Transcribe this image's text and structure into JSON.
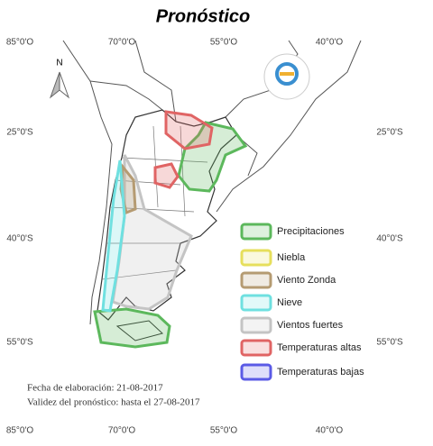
{
  "title": "Pronóstico",
  "longitude_labels_top": [
    "85°0'O",
    "70°0'O",
    "55°0'O",
    "40°0'O"
  ],
  "longitude_labels_bottom": [
    "85°0'O",
    "70°0'O",
    "55°0'O",
    "40°0'O"
  ],
  "latitude_labels_left": [
    "25°0'S",
    "40°0'S",
    "55°0'S"
  ],
  "latitude_labels_right": [
    "25°0'S",
    "40°0'S",
    "55°0'S"
  ],
  "north_label": "N",
  "legend": [
    {
      "label": "Precipitaciones",
      "color": "#5cb85c"
    },
    {
      "label": "Niebla",
      "color": "#e6df5c"
    },
    {
      "label": "Viento Zonda",
      "color": "#b59b72"
    },
    {
      "label": "Nieve",
      "color": "#6fe0e0"
    },
    {
      "label": "Vientos fuertes",
      "color": "#c4c4c4"
    },
    {
      "label": "Temperaturas altas",
      "color": "#e06464"
    },
    {
      "label": "Temperaturas bajas",
      "color": "#5a5ae6"
    }
  ],
  "footer": {
    "elaboration": "Fecha de elaboración: 21-08-2017",
    "validity": "Validez del pronóstico: hasta el 27-08-2017"
  }
}
